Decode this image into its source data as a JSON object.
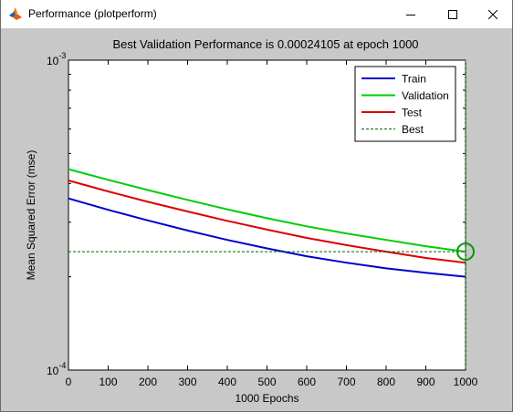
{
  "window": {
    "title": "Performance (plotperform)",
    "icon": "matlab-icon",
    "controls": [
      "minimize-icon",
      "maximize-icon",
      "close-icon"
    ]
  },
  "chart_data": {
    "type": "line",
    "title": "Best Validation Performance is 0.00024105 at epoch 1000",
    "xlabel": "1000 Epochs",
    "ylabel": "Mean Squared Error  (mse)",
    "xlim": [
      0,
      1000
    ],
    "ylim": [
      0.0001,
      0.001
    ],
    "yscale": "log",
    "x_ticks": [
      "0",
      "100",
      "200",
      "300",
      "400",
      "500",
      "600",
      "700",
      "800",
      "900",
      "1000"
    ],
    "y_ticks": [
      {
        "base": "10",
        "exp": "-3",
        "value": 0.001
      },
      {
        "base": "10",
        "exp": "-4",
        "value": 0.0001
      }
    ],
    "legend_position": "top-right",
    "series": [
      {
        "name": "Train",
        "color": "#0000cc",
        "style": "solid",
        "x": [
          0,
          100,
          200,
          300,
          400,
          500,
          600,
          700,
          800,
          900,
          1000
        ],
        "y": [
          0.000358,
          0.000329,
          0.000304,
          0.000282,
          0.000263,
          0.000247,
          0.000233,
          0.000222,
          0.000213,
          0.000206,
          0.0002
        ]
      },
      {
        "name": "Validation",
        "color": "#00cc00",
        "style": "solid",
        "x": [
          0,
          100,
          200,
          300,
          400,
          500,
          600,
          700,
          800,
          900,
          1000
        ],
        "y": [
          0.000445,
          0.000411,
          0.000381,
          0.000354,
          0.00033,
          0.000309,
          0.000291,
          0.000276,
          0.000263,
          0.000251,
          0.000241
        ]
      },
      {
        "name": "Test",
        "color": "#dd0000",
        "style": "solid",
        "x": [
          0,
          100,
          200,
          300,
          400,
          500,
          600,
          700,
          800,
          900,
          1000
        ],
        "y": [
          0.000409,
          0.000377,
          0.000349,
          0.000325,
          0.000303,
          0.000284,
          0.000267,
          0.000253,
          0.000241,
          0.00023,
          0.000222
        ]
      },
      {
        "name": "Best",
        "color": "#006600",
        "style": "dashed",
        "hline": 0.00024105,
        "vline": 1000
      }
    ],
    "best_marker": {
      "x": 1000,
      "y": 0.00024105,
      "color": "#009900"
    }
  }
}
